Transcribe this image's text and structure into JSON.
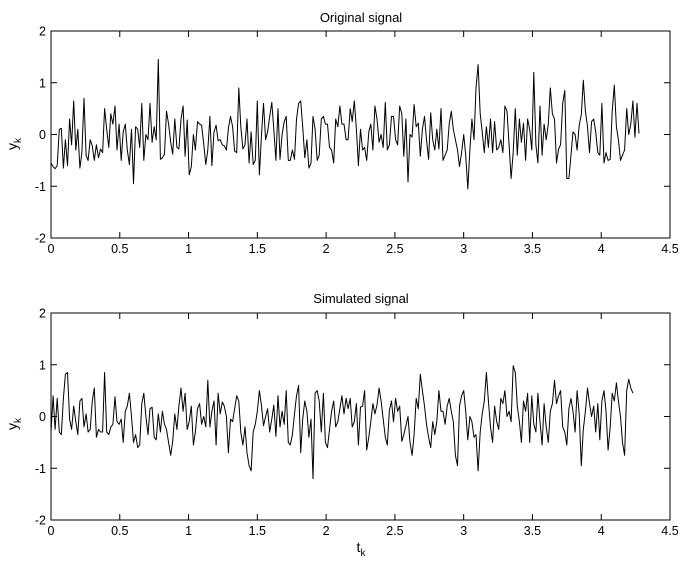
{
  "chart_data": [
    {
      "type": "line",
      "title": "Original signal",
      "ylabel": "y",
      "ylabel_subscript": "k",
      "xlabel": "",
      "xlabel_subscript": "",
      "xlim": [
        0,
        4.5
      ],
      "ylim": [
        -2,
        2
      ],
      "x_ticks": [
        "0",
        "0.5",
        "1",
        "1.5",
        "2",
        "2.5",
        "3",
        "3.5",
        "4",
        "4.5"
      ],
      "y_ticks": [
        "-2",
        "-1",
        "0",
        "1",
        "2"
      ],
      "grid": false,
      "line_color": "#000000",
      "x_start": 0,
      "x_step": 0.015,
      "y": [
        -0.55,
        -0.62,
        -0.66,
        -0.6,
        0.1,
        0.12,
        -0.65,
        -0.1,
        -0.6,
        0.3,
        -0.2,
        0.65,
        -0.3,
        0.1,
        -0.65,
        -0.35,
        0.7,
        -0.4,
        -0.5,
        -0.1,
        -0.22,
        -0.5,
        -0.2,
        -0.45,
        -0.28,
        -0.35,
        0.5,
        0.1,
        -0.25,
        0.4,
        0.2,
        0.55,
        -0.3,
        0.2,
        -0.5,
        0.05,
        0.2,
        -0.3,
        -0.58,
        0.1,
        -0.95,
        0.15,
        0.1,
        -0.25,
        0.6,
        -0.5,
        0.0,
        -0.1,
        0.6,
        -0.15,
        0.15,
        -0.1,
        1.45,
        -0.48,
        -0.45,
        -0.38,
        0.45,
        0.2,
        -0.15,
        -0.38,
        0.3,
        -0.25,
        -0.28,
        0.3,
        0.55,
        -0.42,
        0.28,
        -0.78,
        -0.62,
        0.0,
        -0.3,
        0.25,
        0.2,
        0.18,
        -0.18,
        -0.58,
        -0.3,
        0.35,
        -0.6,
        0.05,
        0.18,
        -0.12,
        -0.1,
        -0.2,
        -0.22,
        -0.3,
        0.12,
        0.35,
        0.15,
        -0.32,
        -0.35,
        0.9,
        0.15,
        -0.28,
        -0.2,
        0.3,
        -0.55,
        0.05,
        -0.58,
        -0.5,
        0.65,
        -0.78,
        0.0,
        0.6,
        -0.1,
        0.05,
        0.35,
        0.62,
        0.1,
        -0.5,
        0.5,
        -0.48,
        0.0,
        0.25,
        0.35,
        -0.5,
        -0.5,
        -0.3,
        -0.48,
        0.3,
        0.6,
        0.65,
        0.15,
        -0.45,
        -0.1,
        -0.65,
        -0.55,
        0.35,
        0.1,
        -0.5,
        -0.4,
        0.3,
        0.35,
        0.2,
        0.2,
        -0.25,
        -0.3,
        -0.55,
        0.3,
        0.15,
        0.55,
        0.2,
        0.2,
        -0.1,
        -0.1,
        0.5,
        0.25,
        0.65,
        0.1,
        -0.6,
        0.1,
        -0.3,
        -0.25,
        -0.5,
        0.05,
        0.2,
        -0.3,
        0.55,
        0.3,
        -0.15,
        0.0,
        -0.25,
        0.62,
        -0.3,
        -0.2,
        0.35,
        0.35,
        -0.1,
        -0.2,
        0.55,
        0.4,
        -0.42,
        0.3,
        -0.92,
        0.0,
        -0.05,
        0.58,
        0.15,
        0.22,
        -0.42,
        0.1,
        0.35,
        -0.1,
        -0.48,
        0.42,
        -0.1,
        -0.3,
        0.1,
        -0.28,
        0.5,
        -0.5,
        -0.4,
        -0.3,
        0.2,
        0.45,
        0.1,
        -0.1,
        -0.3,
        -0.62,
        -0.35,
        0.0,
        -0.4,
        -1.05,
        -0.3,
        0.3,
        -0.1,
        0.9,
        1.35,
        0.4,
        0.05,
        -0.35,
        0.15,
        -0.25,
        0.3,
        -0.35,
        0.25,
        -0.3,
        -0.25,
        -0.1,
        -0.35,
        0.55,
        0.45,
        -0.2,
        -0.85,
        -0.35,
        0.5,
        -0.4,
        0.3,
        -0.15,
        0.22,
        -0.5,
        0.3,
        0.1,
        -0.3,
        1.2,
        -0.2,
        -0.55,
        0.55,
        -0.4,
        0.2,
        -0.1,
        0.2,
        0.9,
        0.4,
        0.3,
        -0.55,
        -0.28,
        -0.2,
        0.6,
        0.85,
        -0.85,
        -0.85,
        -0.4,
        0.05,
        0.0,
        -0.3,
        0.18,
        0.38,
        1.05,
        0.45,
        0.15,
        -0.35,
        0.25,
        0.3,
        0.05,
        -0.35,
        -0.4,
        0.6,
        -0.55,
        -0.35,
        -0.5,
        -0.48,
        0.45,
        0.95,
        0.15,
        -0.1,
        -0.5,
        -0.4,
        -0.3,
        0.5,
        0.0,
        0.2,
        0.65,
        -0.05,
        0.6,
        0.02
      ]
    },
    {
      "type": "line",
      "title": "Simulated signal",
      "ylabel": "y",
      "ylabel_subscript": "k",
      "xlabel": "t",
      "xlabel_subscript": "k",
      "xlim": [
        0,
        4.5
      ],
      "ylim": [
        -2,
        2
      ],
      "x_ticks": [
        "0",
        "0.5",
        "1",
        "1.5",
        "2",
        "2.5",
        "3",
        "3.5",
        "4",
        "4.5"
      ],
      "y_ticks": [
        "-2",
        "-1",
        "0",
        "1",
        "2"
      ],
      "grid": false,
      "line_color": "#000000",
      "x_start": 0,
      "x_step": 0.015,
      "y": [
        -0.3,
        0.4,
        -0.25,
        0.35,
        -0.3,
        -0.35,
        0.35,
        0.82,
        0.85,
        -0.05,
        -0.25,
        0.2,
        -0.1,
        -0.35,
        0.3,
        0.35,
        -0.2,
        0.05,
        -0.3,
        -0.25,
        0.3,
        0.55,
        -0.4,
        -0.25,
        -0.3,
        -0.3,
        0.85,
        -0.3,
        -0.35,
        -0.2,
        -0.15,
        0.38,
        -0.1,
        -0.15,
        -0.05,
        -0.5,
        0.1,
        0.2,
        0.45,
        0.0,
        -0.5,
        -0.35,
        -0.6,
        -0.55,
        0.25,
        0.45,
        0.0,
        -0.35,
        0.15,
        0.18,
        -0.4,
        -0.45,
        0.05,
        -0.3,
        0.1,
        -0.15,
        -0.25,
        -0.5,
        -0.75,
        -0.48,
        0.05,
        -0.25,
        0.2,
        0.55,
        0.1,
        0.45,
        -0.25,
        -0.1,
        0.2,
        -0.55,
        -0.3,
        0.15,
        0.25,
        -0.15,
        0.0,
        -0.2,
        0.7,
        -0.2,
        0.1,
        0.3,
        -0.55,
        0.45,
        0.05,
        0.28,
        0.2,
        0.0,
        -0.7,
        -0.05,
        -0.1,
        0.15,
        0.4,
        0.3,
        -0.3,
        -0.55,
        -0.2,
        -0.7,
        -0.95,
        -1.05,
        -0.3,
        -0.15,
        0.1,
        0.5,
        0.2,
        -0.18,
        0.0,
        0.15,
        -0.3,
        -0.05,
        0.22,
        -0.38,
        0.4,
        -0.2,
        0.1,
        -0.15,
        0.5,
        -0.5,
        -0.55,
        -0.35,
        0.05,
        0.4,
        0.6,
        -0.7,
        -0.05,
        0.3,
        0.1,
        -0.4,
        -0.05,
        -1.2,
        0.45,
        0.5,
        0.3,
        -0.3,
        0.45,
        -0.5,
        -0.6,
        -0.25,
        0.1,
        0.3,
        -0.2,
        -0.1,
        0.15,
        0.4,
        0.05,
        0.35,
        0.15,
        0.35,
        -0.2,
        -0.1,
        0.25,
        -0.55,
        0.18,
        0.2,
        0.5,
        -0.65,
        -0.4,
        -0.1,
        0.25,
        0.05,
        0.22,
        0.55,
        0.3,
        -0.05,
        -0.4,
        -0.55,
        0.12,
        0.3,
        -0.1,
        0.35,
        0.1,
        0.2,
        -0.48,
        -0.35,
        -0.18,
        0.0,
        -0.5,
        -0.75,
        -0.35,
        0.35,
        0.15,
        0.82,
        0.5,
        0.2,
        -0.15,
        -0.4,
        -0.6,
        -0.1,
        -0.35,
        -0.1,
        0.5,
        0.1,
        0.1,
        -0.15,
        0.2,
        0.35,
        0.1,
        -0.1,
        -0.75,
        -0.95,
        0.2,
        0.4,
        0.5,
        0.1,
        -0.45,
        0.0,
        -0.1,
        -0.4,
        -0.35,
        -1.05,
        -0.3,
        0.05,
        0.3,
        0.85,
        0.3,
        -0.2,
        -0.5,
        0.2,
        -0.1,
        -0.25,
        0.35,
        0.25,
        0.5,
        0.0,
        0.1,
        -0.1,
        0.98,
        0.85,
        0.2,
        -0.1,
        -0.5,
        0.3,
        0.1,
        0.45,
        -0.5,
        0.4,
        -0.15,
        -0.3,
        0.45,
        -0.1,
        -0.55,
        0.25,
        -0.2,
        -0.5,
        0.1,
        0.25,
        0.7,
        0.25,
        0.4,
        0.5,
        -0.2,
        -0.3,
        -0.55,
        0.15,
        0.35,
        0.1,
        -0.3,
        0.5,
        0.05,
        -0.95,
        -0.25,
        0.1,
        0.55,
        0.25,
        0.0,
        0.2,
        -0.3,
        0.25,
        -0.45,
        0.3,
        0.5,
        0.1,
        -0.65,
        -0.2,
        0.45,
        0.3,
        0.65,
        0.3,
        0.0,
        -0.5,
        -0.75,
        0.5,
        0.72,
        0.55,
        0.45
      ]
    }
  ]
}
